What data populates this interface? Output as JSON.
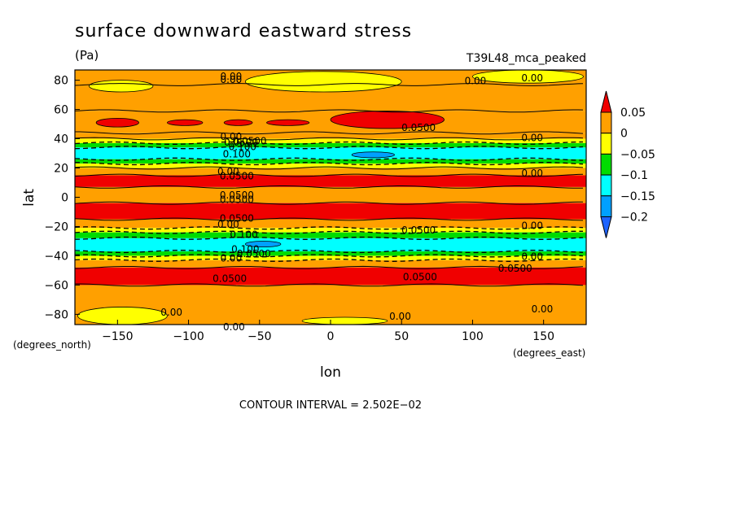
{
  "chart_data": {
    "type": "heatmap",
    "title": "surface downward eastward stress",
    "units": "(Pa)",
    "dataset": "T39L48_mca_peaked",
    "xlabel": "lon",
    "ylabel": "lat",
    "x_unit_label": "(degrees_east)",
    "y_unit_label": "(degrees_north)",
    "xlim": [
      -180,
      180
    ],
    "ylim": [
      -87,
      87
    ],
    "x_ticks": [
      {
        "value": -150,
        "label": "−150"
      },
      {
        "value": -100,
        "label": "−100"
      },
      {
        "value": -50,
        "label": "−50"
      },
      {
        "value": 0,
        "label": "0"
      },
      {
        "value": 50,
        "label": "50"
      },
      {
        "value": 100,
        "label": "100"
      },
      {
        "value": 150,
        "label": "150"
      }
    ],
    "y_ticks": [
      {
        "value": 80,
        "label": "80"
      },
      {
        "value": 60,
        "label": "60"
      },
      {
        "value": 40,
        "label": "40"
      },
      {
        "value": 20,
        "label": "20"
      },
      {
        "value": 0,
        "label": "0"
      },
      {
        "value": -20,
        "label": "−20"
      },
      {
        "value": -40,
        "label": "−40"
      },
      {
        "value": -60,
        "label": "−60"
      },
      {
        "value": -80,
        "label": "−80"
      }
    ],
    "contour_interval_text": "CONTOUR INTERVAL = 2.502E−02",
    "colorbar": {
      "levels": [
        {
          "label": "0.05",
          "color": "#f00000"
        },
        {
          "label": "0",
          "color": "#ffa000"
        },
        {
          "label": "−0.05",
          "color": "#ffff00"
        },
        {
          "label": "−0.1",
          "color": "#00dc00"
        },
        {
          "label": "−0.15",
          "color": "#00ffff"
        },
        {
          "label": "−0.2",
          "color": "#00a0ff"
        }
      ],
      "above_color": "#f00000",
      "below_color": "#1e64ff"
    },
    "colors": {
      "red": "#f00000",
      "orange": "#ffa000",
      "yellow": "#ffff00",
      "green": "#00dc00",
      "cyan": "#00ffff",
      "blue": "#00a0ff"
    },
    "zonal_bands": [
      {
        "lat_from": 87,
        "lat_to": 77,
        "color": "orange"
      },
      {
        "lat_from": 77,
        "lat_to": 59,
        "color": "orange"
      },
      {
        "lat_from": 59,
        "lat_to": 44,
        "color": "orange"
      },
      {
        "lat_from": 44,
        "lat_to": 40,
        "color": "orange"
      },
      {
        "lat_from": 40,
        "lat_to": 37,
        "color": "yellow"
      },
      {
        "lat_from": 37,
        "lat_to": 34,
        "color": "green"
      },
      {
        "lat_from": 34,
        "lat_to": 26,
        "color": "cyan"
      },
      {
        "lat_from": 26,
        "lat_to": 23,
        "color": "green"
      },
      {
        "lat_from": 23,
        "lat_to": 20,
        "color": "yellow"
      },
      {
        "lat_from": 20,
        "lat_to": 15,
        "color": "orange"
      },
      {
        "lat_from": 15,
        "lat_to": 7,
        "color": "red"
      },
      {
        "lat_from": 7,
        "lat_to": -4,
        "color": "orange"
      },
      {
        "lat_from": -4,
        "lat_to": -15,
        "color": "red"
      },
      {
        "lat_from": -15,
        "lat_to": -21,
        "color": "orange"
      },
      {
        "lat_from": -21,
        "lat_to": -24,
        "color": "yellow"
      },
      {
        "lat_from": -24,
        "lat_to": -28,
        "color": "green"
      },
      {
        "lat_from": -28,
        "lat_to": -37,
        "color": "cyan"
      },
      {
        "lat_from": -37,
        "lat_to": -40,
        "color": "green"
      },
      {
        "lat_from": -40,
        "lat_to": -43,
        "color": "yellow"
      },
      {
        "lat_from": -43,
        "lat_to": -48,
        "color": "orange"
      },
      {
        "lat_from": -48,
        "lat_to": -60,
        "color": "red"
      },
      {
        "lat_from": -60,
        "lat_to": -87,
        "color": "orange"
      }
    ],
    "regions": [
      {
        "color": "yellow",
        "lon": [
          -170,
          -125
        ],
        "lat": [
          80,
          72
        ]
      },
      {
        "color": "yellow",
        "lon": [
          -60,
          50
        ],
        "lat": [
          86,
          72
        ]
      },
      {
        "color": "yellow",
        "lon": [
          100,
          178
        ],
        "lat": [
          87,
          78
        ]
      },
      {
        "color": "red",
        "lon": [
          -165,
          -135
        ],
        "lat": [
          54,
          48
        ]
      },
      {
        "color": "red",
        "lon": [
          -115,
          -90
        ],
        "lat": [
          53,
          49
        ]
      },
      {
        "color": "red",
        "lon": [
          -75,
          -55
        ],
        "lat": [
          53,
          49
        ]
      },
      {
        "color": "red",
        "lon": [
          -45,
          -15
        ],
        "lat": [
          53,
          49
        ]
      },
      {
        "color": "red",
        "lon": [
          0,
          80
        ],
        "lat": [
          59,
          47
        ]
      },
      {
        "color": "blue",
        "lon": [
          15,
          45
        ],
        "lat": [
          31,
          27
        ]
      },
      {
        "color": "blue",
        "lon": [
          -60,
          -35
        ],
        "lat": [
          -30,
          -34
        ]
      },
      {
        "color": "yellow",
        "lon": [
          -178,
          -115
        ],
        "lat": [
          -75,
          -87
        ]
      },
      {
        "color": "yellow",
        "lon": [
          -20,
          40
        ],
        "lat": [
          -82,
          -87
        ]
      }
    ],
    "contour_labels": [
      {
        "text": "0.00",
        "lon": -70,
        "lat": 83
      },
      {
        "text": "0.00",
        "lon": -70,
        "lat": 81
      },
      {
        "text": "0.00",
        "lon": 102,
        "lat": 80
      },
      {
        "text": "0.00",
        "lon": 142,
        "lat": 82
      },
      {
        "text": "0.0500",
        "lon": 62,
        "lat": 48
      },
      {
        "text": "0.00",
        "lon": -70,
        "lat": 42
      },
      {
        "text": "0.0500",
        "lon": -63,
        "lat": 38
      },
      {
        "text": "0.0500",
        "lon": -57,
        "lat": 39
      },
      {
        "text": "0.100",
        "lon": -62,
        "lat": 35
      },
      {
        "text": "0.100",
        "lon": -66,
        "lat": 30
      },
      {
        "text": "0.00",
        "lon": 142,
        "lat": 41
      },
      {
        "text": "0.00",
        "lon": -72,
        "lat": 18
      },
      {
        "text": "0.00",
        "lon": 142,
        "lat": 17
      },
      {
        "text": "0.0500",
        "lon": -66,
        "lat": 15
      },
      {
        "text": "0.0500",
        "lon": -66,
        "lat": 2
      },
      {
        "text": "0.0500",
        "lon": -66,
        "lat": -1
      },
      {
        "text": "0.0500",
        "lon": -66,
        "lat": -14
      },
      {
        "text": "0.00",
        "lon": -72,
        "lat": -18
      },
      {
        "text": "0.0500",
        "lon": 62,
        "lat": -22
      },
      {
        "text": "0.00",
        "lon": 142,
        "lat": -19
      },
      {
        "text": "0.100",
        "lon": -61,
        "lat": -25
      },
      {
        "text": "0.100",
        "lon": -60,
        "lat": -35
      },
      {
        "text": "0.0500",
        "lon": -54,
        "lat": -38
      },
      {
        "text": "0.00",
        "lon": -70,
        "lat": -41
      },
      {
        "text": "0.00",
        "lon": 142,
        "lat": -40
      },
      {
        "text": "0.0500",
        "lon": 130,
        "lat": -48
      },
      {
        "text": "0.0500",
        "lon": -71,
        "lat": -55
      },
      {
        "text": "0.0500",
        "lon": 63,
        "lat": -54
      },
      {
        "text": "0.00",
        "lon": -112,
        "lat": -78
      },
      {
        "text": "0.00",
        "lon": 49,
        "lat": -81
      },
      {
        "text": "0.00",
        "lon": 149,
        "lat": -76
      },
      {
        "text": "0.00",
        "lon": -68,
        "lat": -88
      }
    ]
  }
}
